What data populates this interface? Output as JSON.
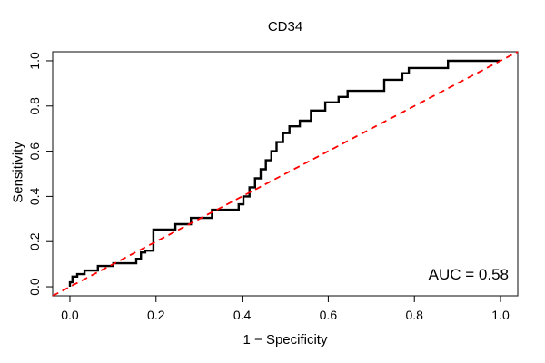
{
  "title": "CD34",
  "axis": {
    "xlabel": "1 − Specificity",
    "ylabel": "Sensitivity"
  },
  "annotation": {
    "auc_label": "AUC = 0.58"
  },
  "colors": {
    "roc_curve": "#000000",
    "reference_line": "#ff0000",
    "box": "#333333",
    "tick": "#000000",
    "text": "#000000",
    "background": "#ffffff"
  },
  "chart_data": {
    "type": "line",
    "subtype": "roc-step-curve",
    "title": "CD34",
    "xlabel": "1 − Specificity",
    "ylabel": "Sensitivity",
    "xlim": [
      -0.04,
      1.04
    ],
    "ylim": [
      -0.04,
      1.04
    ],
    "xticks": [
      0.0,
      0.2,
      0.4,
      0.6,
      0.8,
      1.0
    ],
    "yticks": [
      0.0,
      0.2,
      0.4,
      0.6,
      0.8,
      1.0
    ],
    "x_tick_labels": [
      "0.0",
      "0.2",
      "0.4",
      "0.6",
      "0.8",
      "1.0"
    ],
    "y_tick_labels": [
      "0.0",
      "0.2",
      "0.4",
      "0.6",
      "0.8",
      "1.0"
    ],
    "grid": false,
    "legend": false,
    "auc": 0.58,
    "annotations": [
      {
        "text": "AUC = 0.58",
        "x": 1.019,
        "y": 0.036,
        "anchor": "end",
        "font_size": 17
      }
    ],
    "series": [
      {
        "name": "ROC curve",
        "style": "step",
        "color": "#000000",
        "line_width": 2.4,
        "dash": null,
        "x": [
          0.0,
          0.0,
          0.006,
          0.006,
          0.017,
          0.017,
          0.034,
          0.034,
          0.065,
          0.065,
          0.101,
          0.101,
          0.154,
          0.154,
          0.165,
          0.165,
          0.175,
          0.175,
          0.194,
          0.194,
          0.245,
          0.245,
          0.281,
          0.281,
          0.33,
          0.33,
          0.392,
          0.392,
          0.403,
          0.403,
          0.417,
          0.417,
          0.43,
          0.43,
          0.443,
          0.443,
          0.455,
          0.455,
          0.468,
          0.468,
          0.48,
          0.48,
          0.495,
          0.495,
          0.51,
          0.51,
          0.534,
          0.534,
          0.56,
          0.56,
          0.593,
          0.593,
          0.624,
          0.624,
          0.645,
          0.645,
          0.671,
          0.73,
          0.73,
          0.772,
          0.772,
          0.787,
          0.787,
          0.878,
          0.878,
          1.0
        ],
        "y": [
          0.0,
          0.02,
          0.02,
          0.045,
          0.045,
          0.056,
          0.056,
          0.072,
          0.072,
          0.092,
          0.092,
          0.104,
          0.104,
          0.124,
          0.124,
          0.152,
          0.152,
          0.16,
          0.16,
          0.253,
          0.253,
          0.277,
          0.277,
          0.305,
          0.305,
          0.341,
          0.341,
          0.365,
          0.365,
          0.4,
          0.4,
          0.44,
          0.44,
          0.48,
          0.48,
          0.52,
          0.52,
          0.56,
          0.56,
          0.6,
          0.6,
          0.64,
          0.64,
          0.68,
          0.68,
          0.71,
          0.71,
          0.735,
          0.735,
          0.78,
          0.78,
          0.816,
          0.816,
          0.84,
          0.84,
          0.867,
          0.867,
          0.867,
          0.916,
          0.916,
          0.945,
          0.945,
          0.968,
          0.968,
          1.0,
          1.0
        ]
      },
      {
        "name": "Chance diagonal",
        "style": "dashed",
        "color": "#ff0000",
        "line_width": 1.8,
        "dash": [
          7,
          5
        ],
        "x": [
          -0.04,
          1.04
        ],
        "y": [
          -0.04,
          1.04
        ]
      }
    ]
  }
}
